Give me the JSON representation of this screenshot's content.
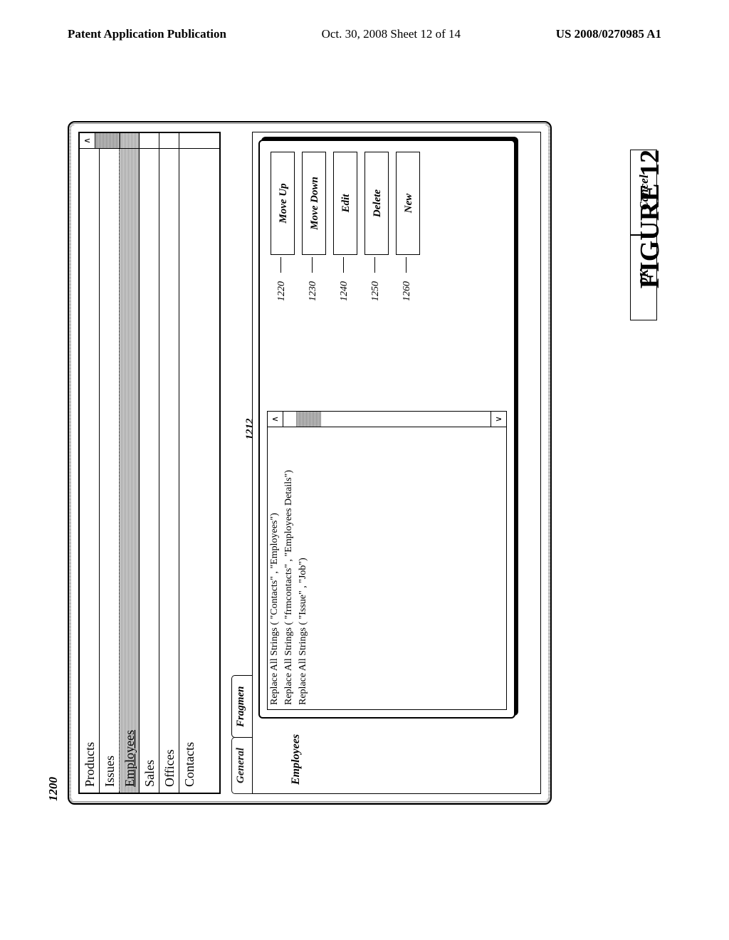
{
  "header": {
    "left": "Patent Application Publication",
    "center": "Oct. 30, 2008  Sheet 12 of 14",
    "right": "US 2008/0270985 A1"
  },
  "refs": {
    "panel": "1200",
    "inner": "1212",
    "moveUp": "1220",
    "moveDown": "1230",
    "edit": "1240",
    "delete": "1250",
    "new": "1260"
  },
  "mainList": [
    "Products",
    "Issues",
    "Employees",
    "Sales",
    "Offices",
    "Contacts"
  ],
  "tabs": {
    "general": "General",
    "fragment": "Fragmen"
  },
  "sectionLabel": "Employees",
  "actionLines": [
    "Replace All Strings ( \"Contacts\" , \"Employees\")",
    "Replace All Strings ( \"frmcontacts\" , \"Employees Details\")",
    "Replace All Strings ( \"Issue\" , \"Job\")"
  ],
  "buttons": {
    "moveUp": "Move Up",
    "moveDown": "Move Down",
    "edit": "Edit",
    "delete": "Delete",
    "new": "New"
  },
  "dialog": {
    "ok": "OK",
    "cancel": "Cancel"
  },
  "caption": "FIGURE 12",
  "colors": {
    "border": "#000000",
    "bg": "#ffffff",
    "hatch": "#999999"
  }
}
